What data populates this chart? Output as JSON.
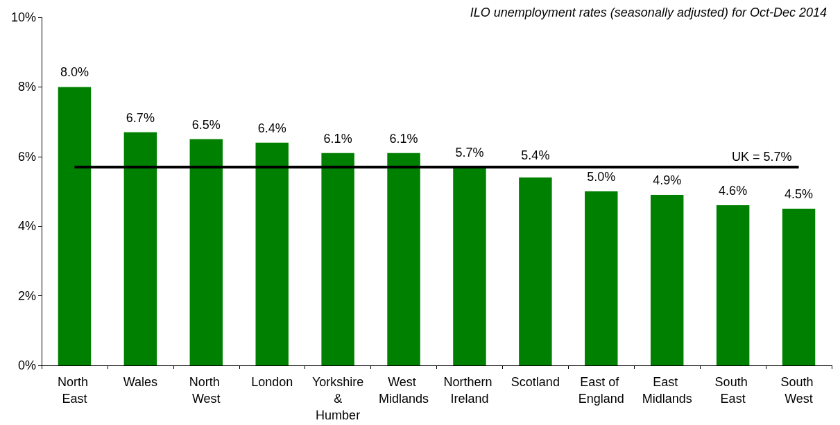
{
  "chart_data": {
    "type": "bar",
    "title": "ILO unemployment rates (seasonally adjusted) for Oct-Dec 2014",
    "categories": [
      "North East",
      "Wales",
      "North West",
      "London",
      "Yorkshire & Humber",
      "West Midlands",
      "Northern Ireland",
      "Scotland",
      "East of England",
      "East Midlands",
      "South East",
      "South West"
    ],
    "values": [
      8.0,
      6.7,
      6.5,
      6.4,
      6.1,
      6.1,
      5.7,
      5.4,
      5.0,
      4.9,
      4.6,
      4.5
    ],
    "value_labels": [
      "8.0%",
      "6.7%",
      "6.5%",
      "6.4%",
      "6.1%",
      "6.1%",
      "5.7%",
      "5.4%",
      "5.0%",
      "4.9%",
      "4.6%",
      "4.5%"
    ],
    "color": "#008000",
    "ylim": [
      0,
      10
    ],
    "yticks": [
      {
        "value": 0,
        "label": "0%"
      },
      {
        "value": 2,
        "label": "2%"
      },
      {
        "value": 4,
        "label": "4%"
      },
      {
        "value": 6,
        "label": "6%"
      },
      {
        "value": 8,
        "label": "8%"
      },
      {
        "value": 10,
        "label": "10%"
      }
    ],
    "grid": false,
    "ref_lines": [
      {
        "axis": "y",
        "value": 5.7,
        "label": "UK = 5.7%",
        "color": "#000000",
        "line_style": "solid"
      }
    ]
  }
}
